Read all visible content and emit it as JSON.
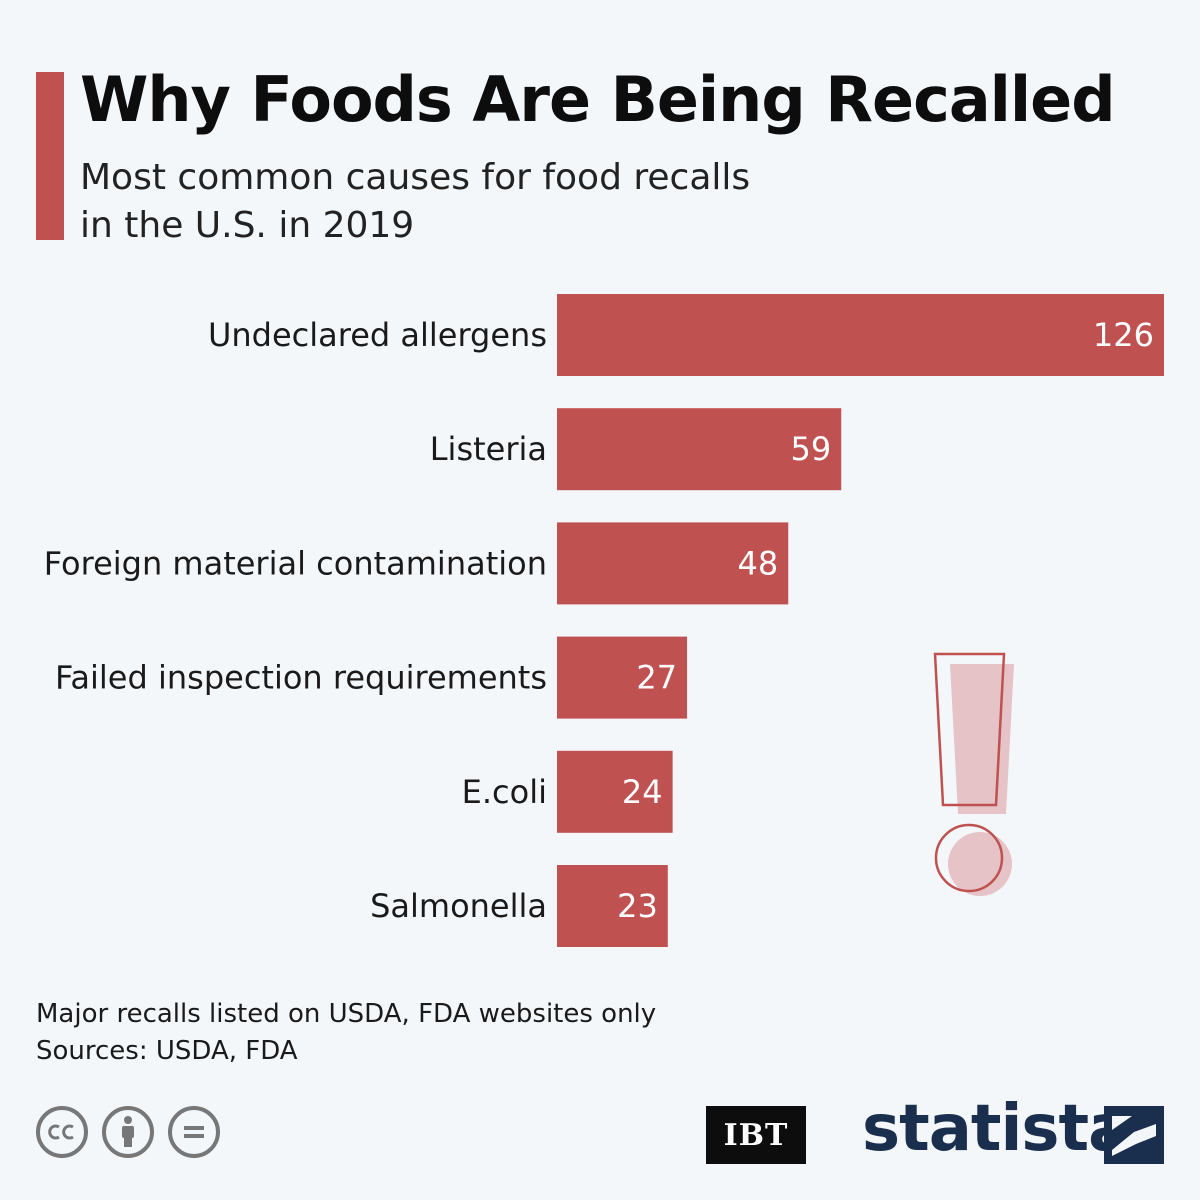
{
  "header": {
    "title": "Why Foods Are Being Recalled",
    "subtitle_line1": "Most common causes for food recalls",
    "subtitle_line2": "in the U.S. in 2019"
  },
  "chart_data": {
    "type": "bar",
    "orientation": "horizontal",
    "title": "Why Foods Are Being Recalled",
    "categories": [
      "Undeclared allergens",
      "Listeria",
      "Foreign material contamination",
      "Failed inspection requirements",
      "E.coli",
      "Salmonella"
    ],
    "values": [
      126,
      59,
      48,
      27,
      24,
      23
    ],
    "xlim": [
      0,
      126
    ],
    "grid": false,
    "legend": "none",
    "bar_color": "#c05151"
  },
  "footer": {
    "note": "Major recalls listed on USDA, FDA websites only",
    "sources": "Sources: USDA, FDA",
    "license_icons": [
      "cc-icon",
      "attribution-icon",
      "no-derivatives-icon"
    ],
    "partner_logo": "IBT",
    "brand": "statista"
  },
  "colors": {
    "accent": "#c05151",
    "background": "#f4f7fa",
    "brand_navy": "#1a2e4d",
    "decor_pink": "#e5c3c6"
  }
}
